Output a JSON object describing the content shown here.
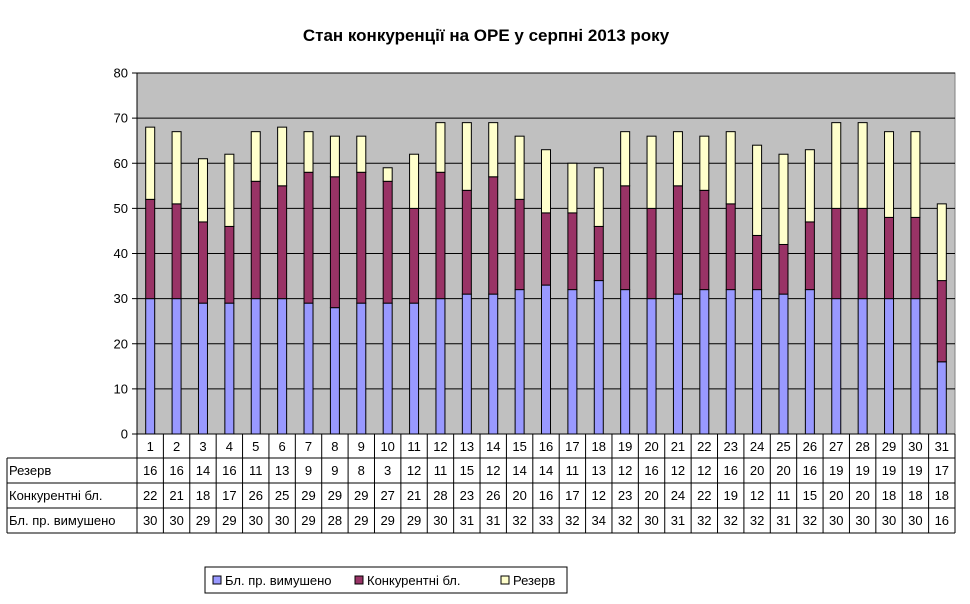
{
  "chart_data": {
    "type": "bar",
    "stacked": true,
    "title": "Стан конкуренції на ОРЕ  у серпні 2013 року",
    "xlabel": "",
    "ylabel": "",
    "ylim": [
      0,
      80
    ],
    "y_ticks": [
      "0",
      "10",
      "20",
      "30",
      "40",
      "50",
      "60",
      "70",
      "80"
    ],
    "grid": true,
    "legend_position": "bottom",
    "categories": [
      "1",
      "2",
      "3",
      "4",
      "5",
      "6",
      "7",
      "8",
      "9",
      "10",
      "11",
      "12",
      "13",
      "14",
      "15",
      "16",
      "17",
      "18",
      "19",
      "20",
      "21",
      "22",
      "23",
      "24",
      "25",
      "26",
      "27",
      "28",
      "29",
      "30",
      "31"
    ],
    "series": [
      {
        "name": "Бл. пр. вимушено",
        "color": "#9999ff",
        "values": [
          30,
          30,
          29,
          29,
          30,
          30,
          29,
          28,
          29,
          29,
          29,
          30,
          31,
          31,
          32,
          33,
          32,
          34,
          32,
          30,
          31,
          32,
          32,
          32,
          31,
          32,
          30,
          30,
          30,
          30,
          16
        ]
      },
      {
        "name": "Конкурентні бл.",
        "color": "#993366",
        "values": [
          22,
          21,
          18,
          17,
          26,
          25,
          29,
          29,
          29,
          27,
          21,
          28,
          23,
          26,
          20,
          16,
          17,
          12,
          23,
          20,
          24,
          22,
          19,
          12,
          11,
          15,
          20,
          20,
          18,
          18,
          18
        ]
      },
      {
        "name": "Резерв",
        "color": "#ffffcc",
        "values": [
          16,
          16,
          14,
          16,
          11,
          13,
          9,
          9,
          8,
          3,
          12,
          11,
          15,
          12,
          14,
          14,
          11,
          13,
          12,
          16,
          12,
          12,
          16,
          20,
          20,
          16,
          19,
          19,
          19,
          19,
          17
        ]
      }
    ],
    "table_rows": [
      "Резерв",
      "Конкурентні бл.",
      "Бл. пр. вимушено"
    ],
    "plot_background": "#c0c0c0"
  }
}
